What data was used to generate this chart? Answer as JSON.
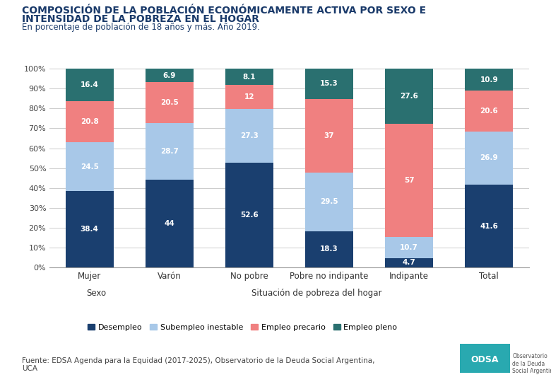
{
  "title_line1": "COMPOSICIÓN DE LA POBLACIÓN ECONÓMICAMENTE ACTIVA POR SEXO E",
  "title_line2": "INTENSIDAD DE LA POBREZA EN EL HOGAR",
  "subtitle": "En porcentaje de población de 18 años y más. Año 2019.",
  "categories": [
    "Mujer",
    "Varón",
    "No pobre",
    "Pobre no indipante",
    "Indipante",
    "Total"
  ],
  "segments": {
    "Desempleo": [
      38.4,
      44.0,
      52.6,
      18.3,
      4.7,
      41.6
    ],
    "Subempleo inestable": [
      24.5,
      28.7,
      27.3,
      29.5,
      10.7,
      26.9
    ],
    "Empleo precario": [
      20.8,
      20.5,
      12.0,
      37.0,
      57.0,
      20.6
    ],
    "Empleo pleno": [
      16.4,
      6.9,
      8.1,
      15.3,
      27.6,
      10.9
    ]
  },
  "colors": {
    "Desempleo": "#1a3f6f",
    "Subempleo inestable": "#a8c8e8",
    "Empleo precario": "#f08080",
    "Empleo pleno": "#2a7070"
  },
  "legend_order": [
    "Desempleo",
    "Subempleo inestable",
    "Empleo precario",
    "Empleo pleno"
  ],
  "yticks": [
    0,
    10,
    20,
    30,
    40,
    50,
    60,
    70,
    80,
    90,
    100
  ],
  "source": "Fuente: EDSA Agenda para la Equidad (2017-2025), Observatorio de la Deuda Social Argentina,\nUCA",
  "background_color": "#ffffff",
  "title_color": "#1a3a6a",
  "bar_width": 0.6
}
